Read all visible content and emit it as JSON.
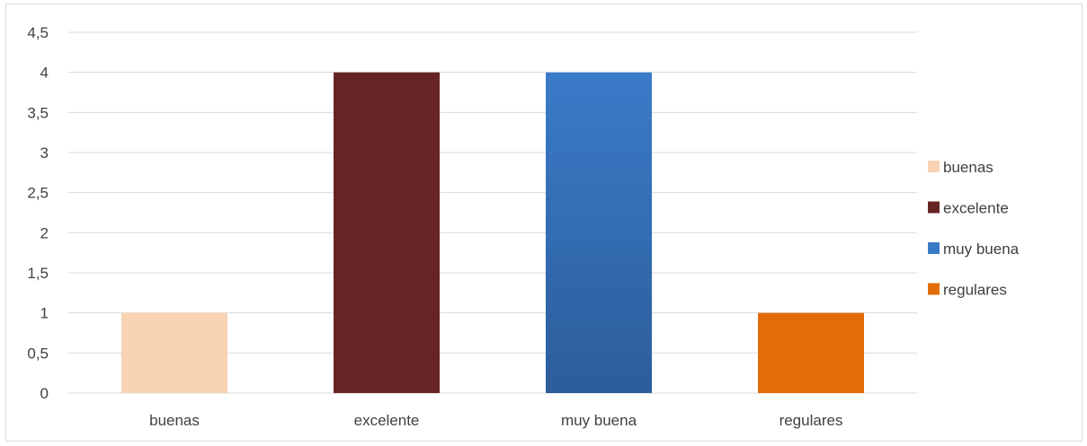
{
  "chart_data": {
    "type": "bar",
    "categories": [
      "buenas",
      "excelente",
      "muy buena",
      "regulares"
    ],
    "values": [
      1,
      4,
      4,
      1
    ],
    "ylim": [
      0,
      4.5
    ],
    "yticks": [
      "0",
      "0,5",
      "1",
      "1,5",
      "2",
      "2,5",
      "3",
      "3,5",
      "4",
      "4,5"
    ],
    "grid": true,
    "legend_position": "right",
    "legend": [
      "buenas",
      "excelente",
      "muy buena",
      "regulares"
    ],
    "colors": [
      "#F8D3B3",
      "#662425",
      "#3A7BC8",
      "#E36C0A"
    ],
    "gradient_bottom": [
      "#F8D3B3",
      "#662425",
      "#2C5D9B",
      "#E36C0A"
    ]
  }
}
